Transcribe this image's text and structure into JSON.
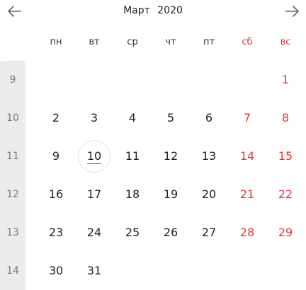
{
  "header": {
    "month": "Март",
    "year": "2020",
    "prev_icon": "arrow-left-icon",
    "next_icon": "arrow-right-icon"
  },
  "weekdays": [
    "пн",
    "вт",
    "ср",
    "чт",
    "пт",
    "сб",
    "вс"
  ],
  "weekend_indices": [
    5,
    6
  ],
  "colors": {
    "weekend": "#e0383e",
    "text": "#222222",
    "week_number": "#777777",
    "week_column_bg": "#ececec",
    "today_underline": "#e0383e"
  },
  "today": 10,
  "weeks": [
    {
      "number": "9",
      "days": [
        null,
        null,
        null,
        null,
        null,
        null,
        1
      ]
    },
    {
      "number": "10",
      "days": [
        2,
        3,
        4,
        5,
        6,
        7,
        8
      ]
    },
    {
      "number": "11",
      "days": [
        9,
        10,
        11,
        12,
        13,
        14,
        15
      ]
    },
    {
      "number": "12",
      "days": [
        16,
        17,
        18,
        19,
        20,
        21,
        22
      ]
    },
    {
      "number": "13",
      "days": [
        23,
        24,
        25,
        26,
        27,
        28,
        29
      ]
    },
    {
      "number": "14",
      "days": [
        30,
        31,
        null,
        null,
        null,
        null,
        null
      ]
    }
  ]
}
